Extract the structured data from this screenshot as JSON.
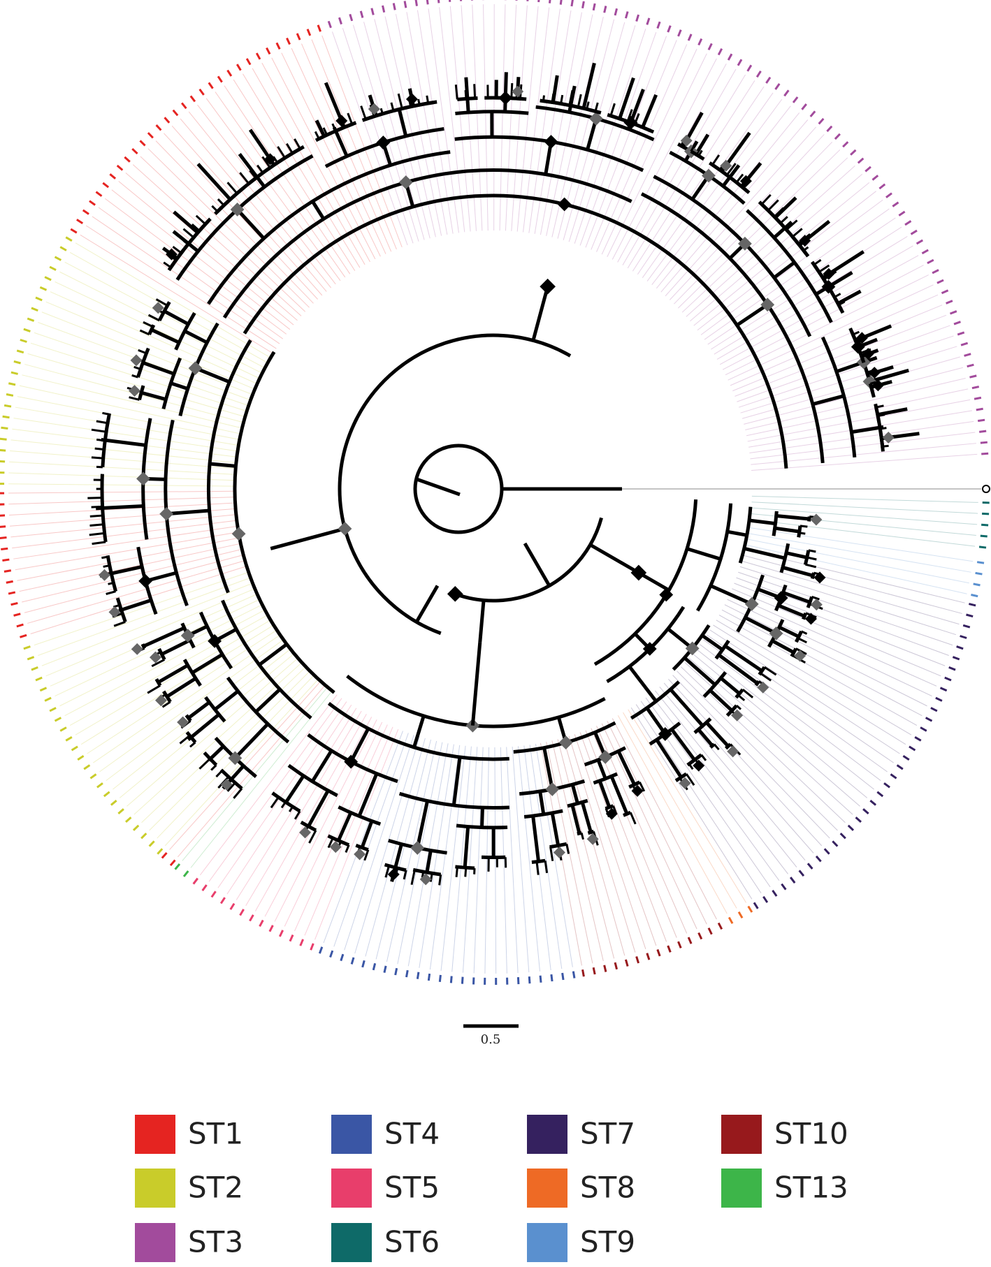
{
  "scale_bar": {
    "label": "0.5"
  },
  "legend": {
    "items": [
      {
        "label": "ST1",
        "color": "#e52421"
      },
      {
        "label": "ST2",
        "color": "#c9cc2a"
      },
      {
        "label": "ST3",
        "color": "#a24b9c"
      },
      {
        "label": "ST4",
        "color": "#3a56a5"
      },
      {
        "label": "ST5",
        "color": "#e83e6b"
      },
      {
        "label": "ST6",
        "color": "#0e6a68"
      },
      {
        "label": "ST7",
        "color": "#35215f"
      },
      {
        "label": "ST8",
        "color": "#ee6a25"
      },
      {
        "label": "ST9",
        "color": "#5a90cf"
      },
      {
        "label": "ST10",
        "color": "#97191c"
      },
      {
        "label": "ST13",
        "color": "#3db549"
      }
    ]
  }
}
